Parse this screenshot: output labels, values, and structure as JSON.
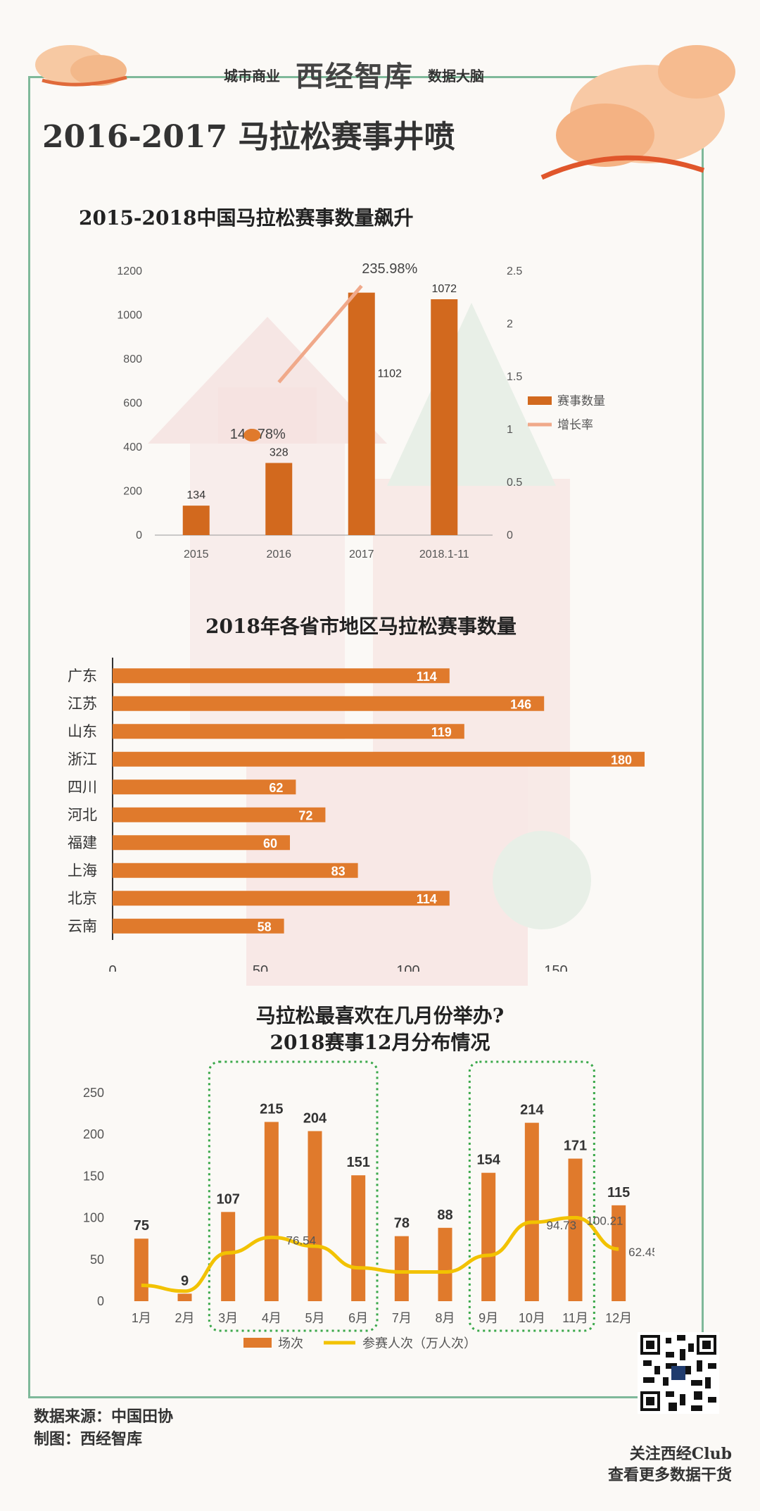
{
  "header": {
    "left_text": "城市商业",
    "logo_text": "西经智库",
    "right_text": "数据大脑"
  },
  "main_title": "2016-2017 马拉松赛事井喷",
  "chart1_title": "2015-2018中国马拉松赛事数量飙升",
  "chart2_title": "2018年各省市地区马拉松赛事数量",
  "chart3_title_line1": "马拉松最喜欢在几月份举办?",
  "chart3_title_line2": "2018赛事12月分布情况",
  "footer": {
    "source_line": "数据来源：中国田协",
    "maker_line": "制图：西经智库",
    "follow_line1": "关注西经Club",
    "follow_line2": "查看更多数据干货"
  },
  "colors": {
    "bar": "#e07a2c",
    "bar_dark": "#d2691e",
    "growth_line": "#f0a98a",
    "participants_line": "#f2c200",
    "frame": "#7fb99a",
    "highlight_box": "#3aa84a"
  },
  "chart_data": [
    {
      "type": "bar",
      "categories": [
        "2015",
        "2016",
        "2017",
        "2018.1-11"
      ],
      "series": [
        {
          "name": "赛事数量",
          "values": [
            134,
            328,
            1102,
            1072
          ],
          "value_labels": [
            "134",
            "328",
            "1102",
            "1072"
          ]
        },
        {
          "name": "增长率",
          "type": "line",
          "values": [
            null,
            1.4478,
            2.3598,
            null
          ],
          "value_labels": [
            "",
            "144.78%",
            "235.98%",
            ""
          ]
        }
      ],
      "ylim": [
        0,
        1200
      ],
      "yticks": [
        "0",
        "200",
        "400",
        "600",
        "800",
        "1000",
        "1200"
      ],
      "y2lim": [
        0,
        2.5
      ],
      "y2ticks": [
        "0",
        "0.5",
        "1",
        "1.5",
        "2",
        "2.5"
      ],
      "legend": [
        "赛事数量",
        "增长率"
      ],
      "legend_position": "right"
    },
    {
      "type": "bar",
      "orientation": "horizontal",
      "categories": [
        "广东",
        "江苏",
        "山东",
        "浙江",
        "四川",
        "河北",
        "福建",
        "上海",
        "北京",
        "云南"
      ],
      "values": [
        114,
        146,
        119,
        180,
        62,
        72,
        60,
        83,
        114,
        58
      ],
      "xlim": [
        0,
        180
      ],
      "xticks": [
        "0",
        "50",
        "100",
        "150"
      ]
    },
    {
      "type": "bar",
      "categories": [
        "1月",
        "2月",
        "3月",
        "4月",
        "5月",
        "6月",
        "7月",
        "8月",
        "9月",
        "10月",
        "11月",
        "12月"
      ],
      "series": [
        {
          "name": "场次",
          "values": [
            75,
            9,
            107,
            215,
            204,
            151,
            78,
            88,
            154,
            214,
            171,
            115
          ]
        },
        {
          "name": "参赛人次（万人次）",
          "type": "line",
          "values": [
            19,
            12,
            58,
            76.54,
            66,
            40,
            35,
            35,
            55,
            94.73,
            100.21,
            62.45
          ],
          "value_labels": [
            "",
            "",
            "",
            "76.54",
            "",
            "",
            "",
            "",
            "",
            "94.73",
            "100.21",
            "62.45"
          ]
        }
      ],
      "ylim": [
        0,
        250
      ],
      "yticks": [
        "0",
        "50",
        "100",
        "150",
        "200",
        "250"
      ],
      "highlight_groups": [
        [
          "3月",
          "6月"
        ],
        [
          "9月",
          "11月"
        ]
      ],
      "legend": [
        "场次",
        "参赛人次（万人次）"
      ],
      "legend_position": "bottom"
    }
  ]
}
